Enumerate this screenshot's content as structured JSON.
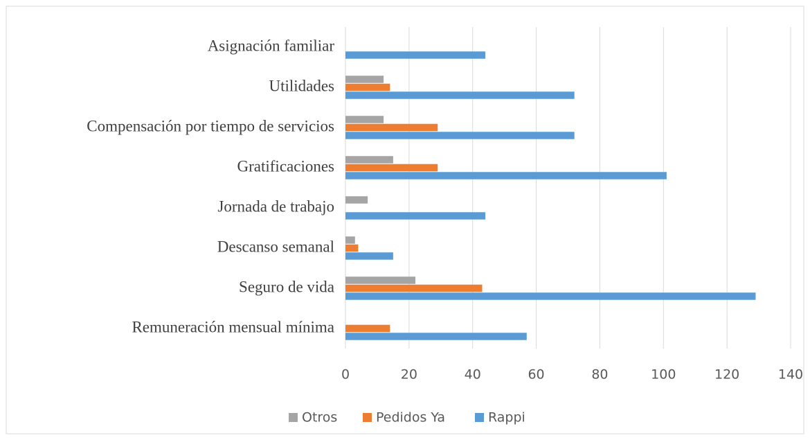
{
  "chart_data": {
    "type": "barh",
    "categories": [
      "Asignación familiar",
      "Utilidades",
      "Compensación por tiempo de servicios",
      "Gratificaciones",
      "Jornada de trabajo",
      "Descanso semanal",
      "Seguro de vida",
      "Remuneración mensual mínima"
    ],
    "series": [
      {
        "name": "Otros",
        "color": "#a5a5a5",
        "values": [
          0,
          12,
          12,
          15,
          7,
          3,
          22,
          0
        ]
      },
      {
        "name": "Pedidos Ya",
        "color": "#ed7d31",
        "values": [
          0,
          14,
          29,
          29,
          0,
          4,
          43,
          14
        ]
      },
      {
        "name": "Rappi",
        "color": "#5b9bd5",
        "values": [
          44,
          72,
          72,
          101,
          44,
          15,
          129,
          57
        ]
      }
    ],
    "xlim": [
      0,
      140
    ],
    "xticks": [
      0,
      20,
      40,
      60,
      80,
      100,
      120,
      140
    ],
    "grid": true,
    "legend": "bottom"
  }
}
